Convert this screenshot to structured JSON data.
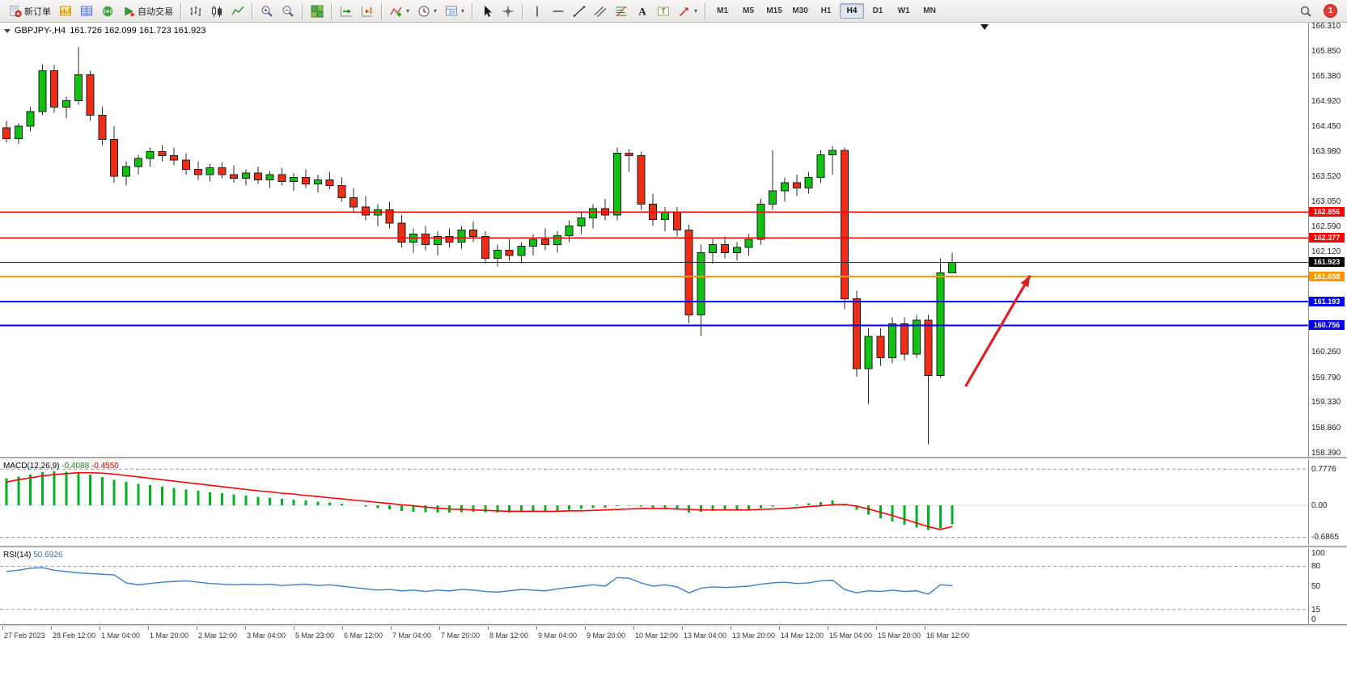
{
  "window": {
    "badge_count": "1"
  },
  "toolbar": {
    "groups": [
      {
        "items": [
          {
            "name": "new-order-button",
            "icon": "new-order",
            "label": "新订单"
          },
          {
            "name": "charts-window-button",
            "icon": "chart-gold"
          },
          {
            "name": "market-watch-button",
            "icon": "quotes"
          },
          {
            "name": "news-button",
            "icon": "news"
          },
          {
            "name": "autotrading-button",
            "icon": "autotrading",
            "label": "自动交易"
          }
        ]
      },
      {
        "items": [
          {
            "name": "bar-chart-button",
            "icon": "bars"
          },
          {
            "name": "candlestick-chart-button",
            "icon": "candles"
          },
          {
            "name": "line-chart-button",
            "icon": "line"
          }
        ]
      },
      {
        "items": [
          {
            "name": "zoom-in-button",
            "icon": "zoom-in"
          },
          {
            "name": "zoom-out-button",
            "icon": "zoom-out"
          }
        ]
      },
      {
        "items": [
          {
            "name": "tile-windows-button",
            "icon": "tile"
          }
        ]
      },
      {
        "items": [
          {
            "name": "auto-scroll-button",
            "icon": "auto-scroll"
          },
          {
            "name": "chart-shift-button",
            "icon": "chart-shift"
          }
        ]
      },
      {
        "items": [
          {
            "name": "indicators-button",
            "icon": "indicators",
            "dropdown": true
          },
          {
            "name": "periods-button",
            "icon": "clock",
            "dropdown": true
          },
          {
            "name": "templates-button",
            "icon": "template",
            "dropdown": true
          }
        ]
      },
      {
        "items": [
          {
            "name": "cursor-button",
            "icon": "cursor"
          },
          {
            "name": "crosshair-button",
            "icon": "crosshair"
          }
        ]
      },
      {
        "items": [
          {
            "name": "vertical-line-button",
            "icon": "vline"
          },
          {
            "name": "horizontal-line-button",
            "icon": "hline"
          },
          {
            "name": "trendline-button",
            "icon": "trendline"
          },
          {
            "name": "channel-button",
            "icon": "channel"
          },
          {
            "name": "fibonacci-button",
            "icon": "fibo"
          },
          {
            "name": "text-button",
            "icon": "text-a"
          },
          {
            "name": "text-label-button",
            "icon": "text-t"
          },
          {
            "name": "arrows-button",
            "icon": "shapes",
            "dropdown": true
          }
        ]
      },
      {
        "timeframes": true,
        "items": [
          {
            "name": "timeframe-m1",
            "label": "M1"
          },
          {
            "name": "timeframe-m5",
            "label": "M5"
          },
          {
            "name": "timeframe-m15",
            "label": "M15"
          },
          {
            "name": "timeframe-m30",
            "label": "M30"
          },
          {
            "name": "timeframe-h1",
            "label": "H1"
          },
          {
            "name": "timeframe-h4",
            "label": "H4",
            "active": true
          },
          {
            "name": "timeframe-d1",
            "label": "D1"
          },
          {
            "name": "timeframe-w1",
            "label": "W1"
          },
          {
            "name": "timeframe-mn",
            "label": "MN"
          }
        ]
      }
    ]
  },
  "chart": {
    "symbol_label": "GBPJPY-,H4",
    "ohlc_label": "161.726 162.099 161.723 161.923",
    "price_axis": [
      "166.310",
      "165.850",
      "165.380",
      "164.920",
      "164.450",
      "163.980",
      "163.520",
      "163.050",
      "162.590",
      "162.120",
      "161.650",
      "161.190",
      "160.730",
      "160.260",
      "159.790",
      "159.330",
      "158.860",
      "158.390"
    ],
    "time_axis": [
      "27 Feb 2023",
      "28 Feb 12:00",
      "1 Mar 04:00",
      "1 Mar 20:00",
      "2 Mar 12:00",
      "3 Mar 04:00",
      "5 Mar 23:00",
      "6 Mar 12:00",
      "7 Mar 04:00",
      "7 Mar 20:00",
      "8 Mar 12:00",
      "9 Mar 04:00",
      "9 Mar 20:00",
      "10 Mar 12:00",
      "13 Mar 04:00",
      "13 Mar 20:00",
      "14 Mar 12:00",
      "15 Mar 04:00",
      "15 Mar 20:00",
      "16 Mar 12:00"
    ],
    "hlines": [
      {
        "price": 162.856,
        "label": "162.856",
        "color": "#ff0000",
        "tag_bg": "#ff0000",
        "width": 1.5
      },
      {
        "price": 162.377,
        "label": "162.377",
        "color": "#ff0000",
        "tag_bg": "#ff0000",
        "width": 1.5
      },
      {
        "price": 161.923,
        "label": "161.923",
        "color": "#2a2a2a",
        "tag_bg": "#000000",
        "width": 1
      },
      {
        "price": 161.658,
        "label": "161.658",
        "color": "#ff9800",
        "tag_bg": "#ff9800",
        "width": 2
      },
      {
        "price": 161.193,
        "label": "161.193",
        "color": "#0000ee",
        "tag_bg": "#0000ee",
        "width": 2
      },
      {
        "price": 160.756,
        "label": "160.756",
        "color": "#0000ee",
        "tag_bg": "#0000ee",
        "width": 2
      }
    ],
    "annotations": [
      {
        "type": "arrow",
        "from": {
          "bar": 80.1,
          "price": 159.62
        },
        "to": {
          "bar": 85.5,
          "price": 161.68
        },
        "color": "#e02020"
      }
    ]
  },
  "macd": {
    "label": "MACD(12,26,9)",
    "value_main": "-0.4088",
    "value_signal": "-0.4550",
    "axis": [
      "0.7776",
      "0.00",
      "-0.6865"
    ]
  },
  "rsi": {
    "label": "RSI(14)",
    "value_label": "50.6926",
    "axis": [
      "100",
      "80",
      "50",
      "15",
      "0"
    ]
  },
  "chart_data": [
    {
      "type": "candlestick",
      "title": "GBPJPY-,H4",
      "ylim": [
        158.39,
        166.31
      ],
      "up_color": "#0fc411",
      "down_color": "#ef2d17",
      "wick_color": "#2b2b2b",
      "outline_color": "#1d1d1d",
      "ohlc": [
        [
          164.42,
          164.55,
          164.15,
          164.22
        ],
        [
          164.22,
          164.5,
          164.12,
          164.45
        ],
        [
          164.45,
          164.8,
          164.35,
          164.72
        ],
        [
          164.72,
          165.6,
          164.65,
          165.48
        ],
        [
          165.48,
          165.58,
          164.7,
          164.8
        ],
        [
          164.8,
          165.0,
          164.6,
          164.92
        ],
        [
          164.92,
          165.92,
          164.85,
          165.4
        ],
        [
          165.4,
          165.48,
          164.55,
          164.65
        ],
        [
          164.65,
          164.8,
          164.1,
          164.2
        ],
        [
          164.2,
          164.45,
          163.4,
          163.52
        ],
        [
          163.52,
          163.8,
          163.35,
          163.7
        ],
        [
          163.7,
          163.92,
          163.55,
          163.85
        ],
        [
          163.85,
          164.05,
          163.7,
          163.98
        ],
        [
          163.98,
          164.1,
          163.8,
          163.9
        ],
        [
          163.9,
          164.05,
          163.72,
          163.82
        ],
        [
          163.82,
          163.95,
          163.55,
          163.65
        ],
        [
          163.65,
          163.8,
          163.45,
          163.55
        ],
        [
          163.55,
          163.75,
          163.42,
          163.68
        ],
        [
          163.68,
          163.78,
          163.48,
          163.55
        ],
        [
          163.55,
          163.72,
          163.4,
          163.48
        ],
        [
          163.48,
          163.65,
          163.35,
          163.58
        ],
        [
          163.58,
          163.7,
          163.38,
          163.45
        ],
        [
          163.45,
          163.62,
          163.3,
          163.55
        ],
        [
          163.55,
          163.68,
          163.35,
          163.42
        ],
        [
          163.42,
          163.58,
          163.25,
          163.5
        ],
        [
          163.5,
          163.65,
          163.3,
          163.38
        ],
        [
          163.38,
          163.55,
          163.22,
          163.45
        ],
        [
          163.45,
          163.6,
          163.28,
          163.35
        ],
        [
          163.35,
          163.5,
          163.05,
          163.12
        ],
        [
          163.12,
          163.3,
          162.85,
          162.95
        ],
        [
          162.95,
          163.15,
          162.7,
          162.8
        ],
        [
          162.8,
          163.0,
          162.6,
          162.9
        ],
        [
          162.9,
          163.05,
          162.55,
          162.65
        ],
        [
          162.65,
          162.8,
          162.2,
          162.3
        ],
        [
          162.3,
          162.55,
          162.1,
          162.45
        ],
        [
          162.45,
          162.6,
          162.15,
          162.25
        ],
        [
          162.25,
          162.5,
          162.05,
          162.4
        ],
        [
          162.4,
          162.55,
          162.2,
          162.3
        ],
        [
          162.3,
          162.6,
          162.18,
          162.52
        ],
        [
          162.52,
          162.68,
          162.3,
          162.4
        ],
        [
          162.4,
          162.5,
          161.9,
          162.0
        ],
        [
          162.0,
          162.25,
          161.85,
          162.15
        ],
        [
          162.15,
          162.35,
          161.95,
          162.05
        ],
        [
          162.05,
          162.3,
          161.9,
          162.22
        ],
        [
          162.22,
          162.45,
          162.05,
          162.35
        ],
        [
          162.35,
          162.55,
          162.15,
          162.25
        ],
        [
          162.25,
          162.5,
          162.1,
          162.42
        ],
        [
          162.42,
          162.7,
          162.3,
          162.6
        ],
        [
          162.6,
          162.85,
          162.45,
          162.75
        ],
        [
          162.75,
          163.0,
          162.55,
          162.92
        ],
        [
          162.92,
          163.1,
          162.7,
          162.8
        ],
        [
          162.8,
          164.05,
          162.7,
          163.95
        ],
        [
          163.95,
          164.02,
          163.6,
          163.9
        ],
        [
          163.9,
          163.98,
          162.9,
          163.0
        ],
        [
          163.0,
          163.2,
          162.6,
          162.72
        ],
        [
          162.72,
          162.95,
          162.5,
          162.85
        ],
        [
          162.85,
          162.95,
          162.4,
          162.52
        ],
        [
          162.52,
          162.62,
          160.8,
          160.95
        ],
        [
          160.95,
          162.25,
          160.55,
          162.1
        ],
        [
          162.1,
          162.35,
          161.9,
          162.25
        ],
        [
          162.25,
          162.4,
          162.0,
          162.1
        ],
        [
          162.1,
          162.3,
          161.95,
          162.2
        ],
        [
          162.2,
          162.45,
          162.05,
          162.35
        ],
        [
          162.35,
          163.1,
          162.25,
          163.0
        ],
        [
          163.0,
          164.0,
          162.9,
          163.25
        ],
        [
          163.25,
          163.5,
          163.05,
          163.4
        ],
        [
          163.4,
          163.55,
          163.15,
          163.3
        ],
        [
          163.3,
          163.6,
          163.2,
          163.5
        ],
        [
          163.5,
          164.0,
          163.4,
          163.92
        ],
        [
          163.92,
          164.08,
          163.55,
          164.0
        ],
        [
          164.0,
          164.05,
          161.05,
          161.25
        ],
        [
          161.25,
          161.4,
          159.8,
          159.95
        ],
        [
          159.95,
          160.7,
          159.3,
          160.55
        ],
        [
          160.55,
          160.7,
          160.0,
          160.15
        ],
        [
          160.15,
          160.9,
          160.05,
          160.78
        ],
        [
          160.78,
          160.9,
          160.1,
          160.22
        ],
        [
          160.22,
          160.95,
          160.15,
          160.85
        ],
        [
          160.85,
          160.95,
          158.55,
          159.82
        ],
        [
          159.82,
          162.0,
          159.78,
          161.73
        ],
        [
          161.726,
          162.099,
          161.723,
          161.923
        ]
      ]
    },
    {
      "type": "bar",
      "name": "MACD(12,26,9)",
      "ylim": [
        -0.8,
        0.92
      ],
      "levels": [
        0.7776,
        -0.6865
      ],
      "histogram_color": "#00b31f",
      "signal_color": "#ff0000",
      "histogram": [
        0.58,
        0.62,
        0.66,
        0.71,
        0.73,
        0.72,
        0.7,
        0.66,
        0.61,
        0.55,
        0.5,
        0.46,
        0.43,
        0.4,
        0.37,
        0.34,
        0.31,
        0.28,
        0.26,
        0.23,
        0.21,
        0.18,
        0.16,
        0.14,
        0.12,
        0.1,
        0.08,
        0.06,
        0.03,
        0.0,
        -0.03,
        -0.06,
        -0.09,
        -0.12,
        -0.14,
        -0.15,
        -0.16,
        -0.16,
        -0.15,
        -0.14,
        -0.15,
        -0.16,
        -0.16,
        -0.15,
        -0.14,
        -0.13,
        -0.12,
        -0.1,
        -0.08,
        -0.06,
        -0.05,
        -0.02,
        -0.01,
        -0.03,
        -0.06,
        -0.08,
        -0.1,
        -0.16,
        -0.14,
        -0.12,
        -0.11,
        -0.1,
        -0.09,
        -0.06,
        -0.03,
        0.0,
        0.02,
        0.04,
        0.07,
        0.1,
        0.02,
        -0.1,
        -0.2,
        -0.28,
        -0.35,
        -0.42,
        -0.48,
        -0.53,
        -0.5,
        -0.4088
      ],
      "signal": [
        0.5,
        0.55,
        0.59,
        0.63,
        0.66,
        0.68,
        0.7,
        0.7,
        0.69,
        0.67,
        0.64,
        0.61,
        0.58,
        0.55,
        0.52,
        0.49,
        0.46,
        0.43,
        0.4,
        0.37,
        0.34,
        0.31,
        0.29,
        0.26,
        0.24,
        0.21,
        0.19,
        0.16,
        0.14,
        0.11,
        0.09,
        0.06,
        0.04,
        0.01,
        -0.01,
        -0.04,
        -0.06,
        -0.08,
        -0.09,
        -0.1,
        -0.11,
        -0.12,
        -0.13,
        -0.13,
        -0.13,
        -0.13,
        -0.13,
        -0.12,
        -0.12,
        -0.11,
        -0.1,
        -0.09,
        -0.08,
        -0.07,
        -0.07,
        -0.07,
        -0.08,
        -0.09,
        -0.1,
        -0.1,
        -0.1,
        -0.1,
        -0.1,
        -0.09,
        -0.08,
        -0.07,
        -0.05,
        -0.03,
        -0.01,
        0.01,
        0.02,
        -0.02,
        -0.08,
        -0.15,
        -0.22,
        -0.3,
        -0.38,
        -0.46,
        -0.52,
        -0.455
      ]
    },
    {
      "type": "line",
      "name": "RSI(14)",
      "ylim": [
        0,
        100
      ],
      "levels": [
        80,
        15
      ],
      "line_color": "#3e7fc1",
      "values": [
        72,
        74,
        77,
        78,
        74,
        72,
        70,
        69,
        68,
        67,
        55,
        52,
        54,
        56,
        57,
        58,
        56,
        54,
        53,
        52,
        53,
        52,
        53,
        51,
        52,
        53,
        51,
        52,
        50,
        48,
        46,
        44,
        45,
        43,
        44,
        42,
        44,
        43,
        45,
        44,
        42,
        41,
        43,
        45,
        44,
        43,
        46,
        48,
        50,
        52,
        50,
        63,
        62,
        55,
        50,
        52,
        49,
        40,
        47,
        49,
        48,
        49,
        50,
        53,
        55,
        56,
        54,
        55,
        58,
        59,
        45,
        40,
        43,
        42,
        44,
        42,
        43,
        38,
        52,
        50.69
      ]
    }
  ]
}
